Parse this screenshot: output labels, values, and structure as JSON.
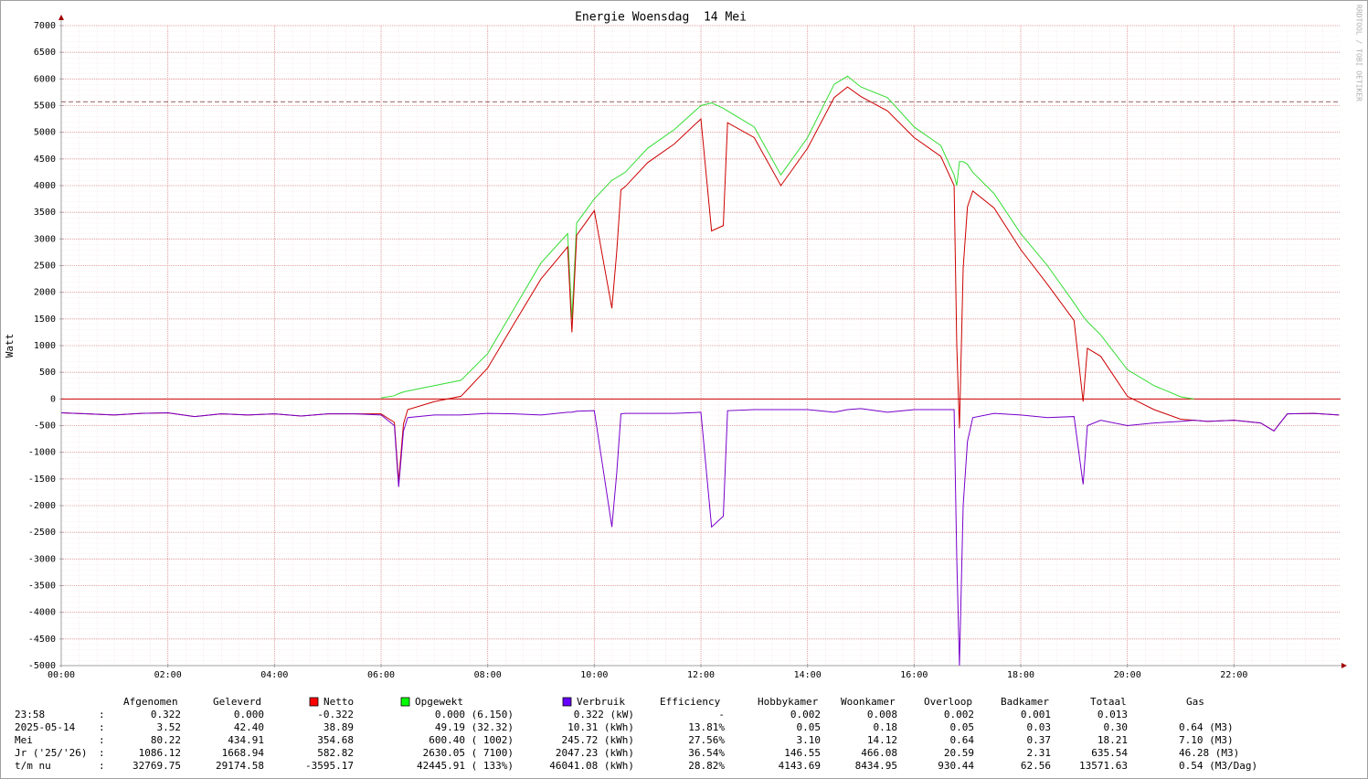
{
  "chart_data": {
    "type": "line",
    "title": "Energie Woensdag  14 Mei",
    "y_label": "Watt",
    "watermark": "RRDTOOL / TOBI OETIKER",
    "x": [
      0,
      0.5,
      1,
      1.5,
      2,
      2.5,
      3,
      3.5,
      4,
      4.5,
      5,
      5.5,
      6,
      6.25,
      6.33,
      6.42,
      6.5,
      7,
      7.5,
      8,
      8.5,
      9,
      9.5,
      9.58,
      9.67,
      10,
      10.33,
      10.42,
      10.5,
      10.58,
      11,
      11.5,
      12,
      12.2,
      12.42,
      12.5,
      13,
      13.5,
      14,
      14.5,
      14.75,
      15,
      15.5,
      16,
      16.5,
      16.75,
      16.8,
      16.85,
      16.92,
      17,
      17.1,
      17.5,
      18,
      18.5,
      19,
      19.17,
      19.25,
      19.5,
      20,
      20.5,
      21,
      21.25,
      21.5,
      22,
      22.5,
      22.75,
      23,
      23.5,
      23.97
    ],
    "series": [
      {
        "name": "Opgewekt",
        "color": "#33dd33",
        "legend_color": "#00ff00",
        "values": [
          null,
          null,
          null,
          null,
          null,
          null,
          null,
          null,
          null,
          null,
          null,
          null,
          20,
          60,
          100,
          130,
          150,
          250,
          350,
          850,
          1700,
          2550,
          3100,
          1500,
          3300,
          3750,
          4100,
          4150,
          4200,
          4250,
          4700,
          5050,
          5500,
          5550,
          5450,
          5400,
          5100,
          4200,
          4900,
          5900,
          6050,
          5850,
          5650,
          5100,
          4750,
          4200,
          4000,
          4450,
          4450,
          4400,
          4250,
          3850,
          3100,
          2500,
          1800,
          1550,
          1450,
          1200,
          550,
          250,
          40,
          0,
          null,
          null,
          null,
          null,
          null,
          null,
          null
        ]
      },
      {
        "name": "Netto",
        "color": "#cc0000",
        "legend_color": "#ff0000",
        "values": [
          -260,
          -280,
          -300,
          -270,
          -260,
          -330,
          -280,
          -300,
          -280,
          -320,
          -280,
          -280,
          -280,
          -440,
          -1550,
          -470,
          -200,
          -50,
          50,
          580,
          1420,
          2250,
          2850,
          1250,
          3070,
          3530,
          1700,
          2750,
          3920,
          3980,
          4430,
          4780,
          5250,
          3150,
          3250,
          5180,
          4900,
          4000,
          4700,
          5650,
          5850,
          5670,
          5400,
          4900,
          4550,
          4000,
          1000,
          -550,
          2450,
          3600,
          3900,
          3580,
          2800,
          2150,
          1470,
          -50,
          950,
          800,
          50,
          -200,
          -380,
          -400,
          -420,
          -400,
          -450,
          -600,
          -280,
          -270,
          -300
        ]
      },
      {
        "name": "Verbruik",
        "color": "#7700cc",
        "legend_color": "#6600ff",
        "values": [
          -260,
          -280,
          -300,
          -270,
          -260,
          -330,
          -280,
          -300,
          -280,
          -320,
          -280,
          -280,
          -300,
          -500,
          -1650,
          -600,
          -350,
          -300,
          -300,
          -270,
          -280,
          -300,
          -250,
          -250,
          -230,
          -220,
          -2400,
          -1400,
          -280,
          -270,
          -270,
          -270,
          -250,
          -2400,
          -2200,
          -220,
          -200,
          -200,
          -200,
          -250,
          -200,
          -180,
          -250,
          -200,
          -200,
          -200,
          -3000,
          -5000,
          -2000,
          -800,
          -350,
          -270,
          -300,
          -350,
          -330,
          -1600,
          -500,
          -400,
          -500,
          -450,
          -420,
          -400,
          -420,
          -400,
          -450,
          -600,
          -280,
          -270,
          -300
        ]
      }
    ],
    "xlim": [
      0,
      24
    ],
    "xticks": [
      {
        "value": 0,
        "label": "00:00"
      },
      {
        "value": 2,
        "label": "02:00"
      },
      {
        "value": 4,
        "label": "04:00"
      },
      {
        "value": 6,
        "label": "06:00"
      },
      {
        "value": 8,
        "label": "08:00"
      },
      {
        "value": 10,
        "label": "10:00"
      },
      {
        "value": 12,
        "label": "12:00"
      },
      {
        "value": 14,
        "label": "14:00"
      },
      {
        "value": 16,
        "label": "16:00"
      },
      {
        "value": 18,
        "label": "18:00"
      },
      {
        "value": 20,
        "label": "20:00"
      },
      {
        "value": 22,
        "label": "22:00"
      }
    ],
    "ylim": [
      -5000,
      7000
    ],
    "yticks": [
      -5000,
      -4500,
      -4000,
      -3500,
      -3000,
      -2500,
      -2000,
      -1500,
      -1000,
      -500,
      0,
      500,
      1000,
      1500,
      2000,
      2500,
      3000,
      3500,
      4000,
      4500,
      5000,
      5500,
      6000,
      6500,
      7000
    ],
    "grid": true,
    "hline": 5570,
    "hline_color": "#996666"
  },
  "legend_table": {
    "header": [
      "Afgenomen",
      "Geleverd",
      "Efficiency",
      "Hobbykamer",
      "Woonkamer",
      "Overloop",
      "Badkamer",
      "Totaal",
      "Gas"
    ],
    "rows": [
      [
        "23:58",
        ":",
        "0.322",
        "0.000",
        "-0.322",
        "0.000 (6.150)",
        "0.322 (kW)",
        "-",
        "0.002",
        "0.008",
        "0.002",
        "0.001",
        "0.013"
      ],
      [
        "2025-05-14",
        ":",
        "3.52",
        "42.40",
        "38.89",
        "49.19 (32.32)",
        "10.31 (kWh)",
        "13.81%",
        "0.05",
        "0.18",
        "0.05",
        "0.03",
        "0.30",
        "0.64 (M3)"
      ],
      [
        "Mei",
        ":",
        "80.22",
        "434.91",
        "354.68",
        "600.40 ( 1002)",
        "245.72 (kWh)",
        "27.56%",
        "3.10",
        "14.12",
        "0.64",
        "0.37",
        "18.21",
        "7.10 (M3)"
      ],
      [
        "Jr ('25/'26)",
        ":",
        "1086.12",
        "1668.94",
        "582.82",
        "2630.05 ( 7100)",
        "2047.23 (kWh)",
        "36.54%",
        "146.55",
        "466.08",
        "20.59",
        "2.31",
        "635.54",
        "46.28 (M3)"
      ],
      [
        "t/m nu",
        ":",
        "32769.75",
        "29174.58",
        "-3595.17",
        "42445.91 ( 133%)",
        "46041.08 (kWh)",
        "28.82%",
        "4143.69",
        "8434.95",
        "930.44",
        "62.56",
        "13571.63",
        "0.54 (M3/Dag)"
      ]
    ]
  }
}
